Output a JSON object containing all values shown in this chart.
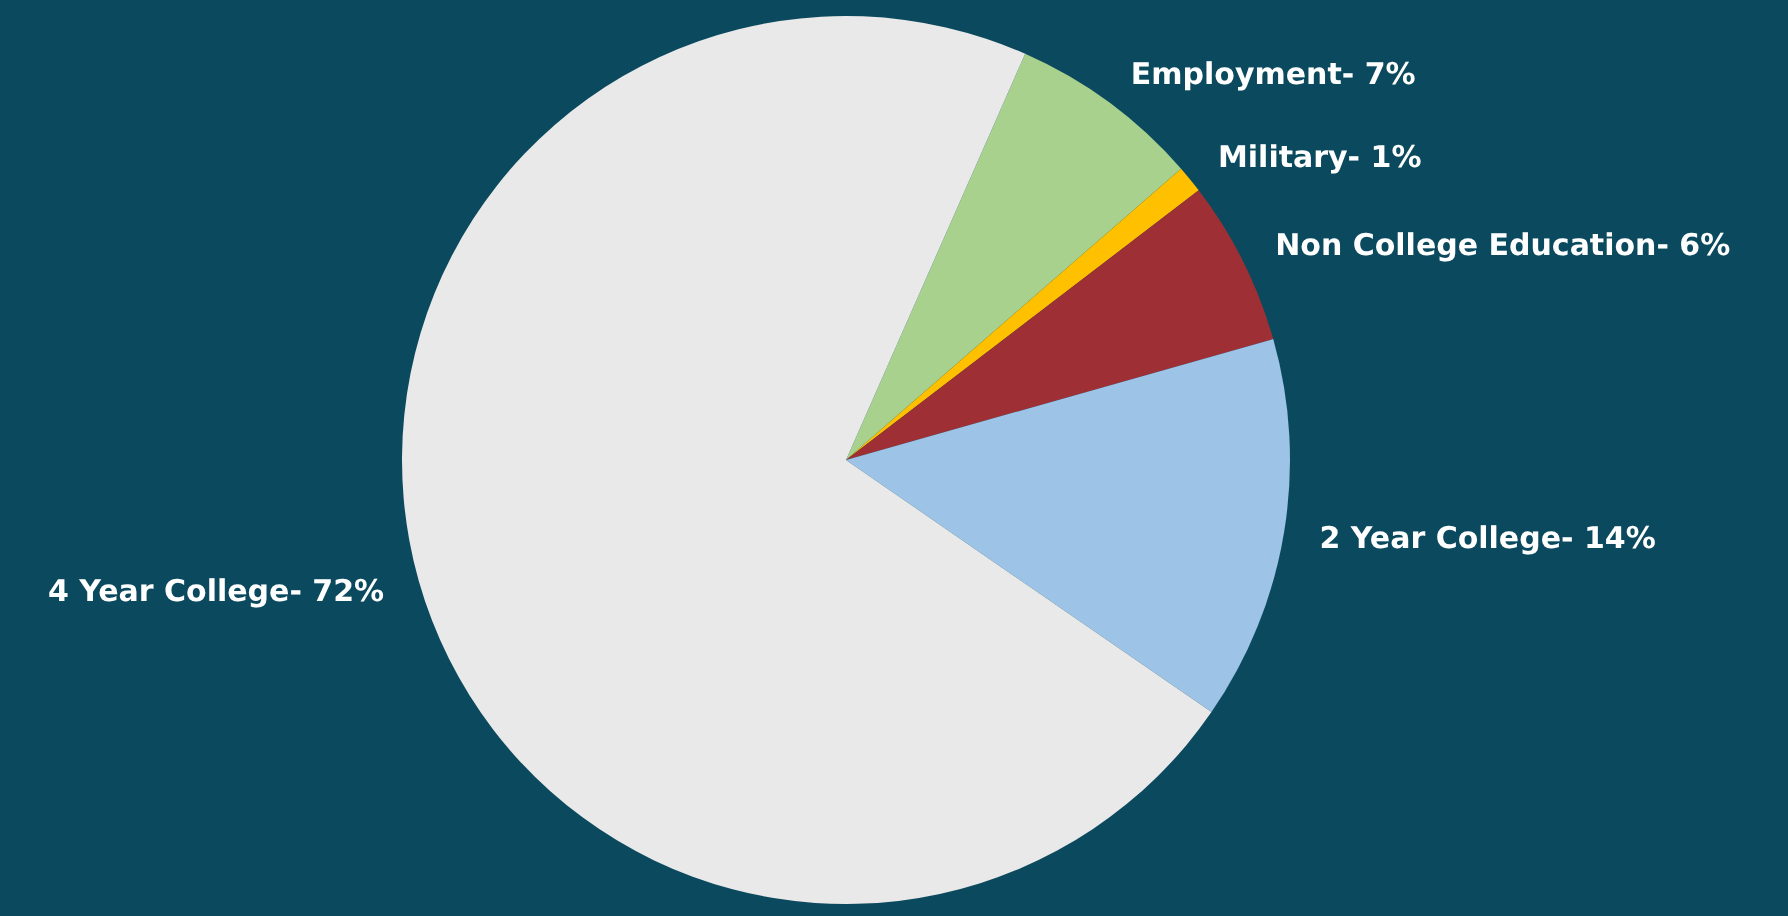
{
  "chart_data": {
    "type": "pie",
    "categories": [
      "Employment",
      "Military",
      "Non College Education",
      "2 Year College",
      "4 Year College"
    ],
    "values": [
      7,
      1,
      6,
      14,
      72
    ],
    "value_labels": [
      "7%",
      "1%",
      "6%",
      "14%",
      "72%"
    ],
    "colors": [
      "#a9d18e",
      "#ffc000",
      "#9e3035",
      "#9dc3e6",
      "#e9e9e9"
    ]
  }
}
